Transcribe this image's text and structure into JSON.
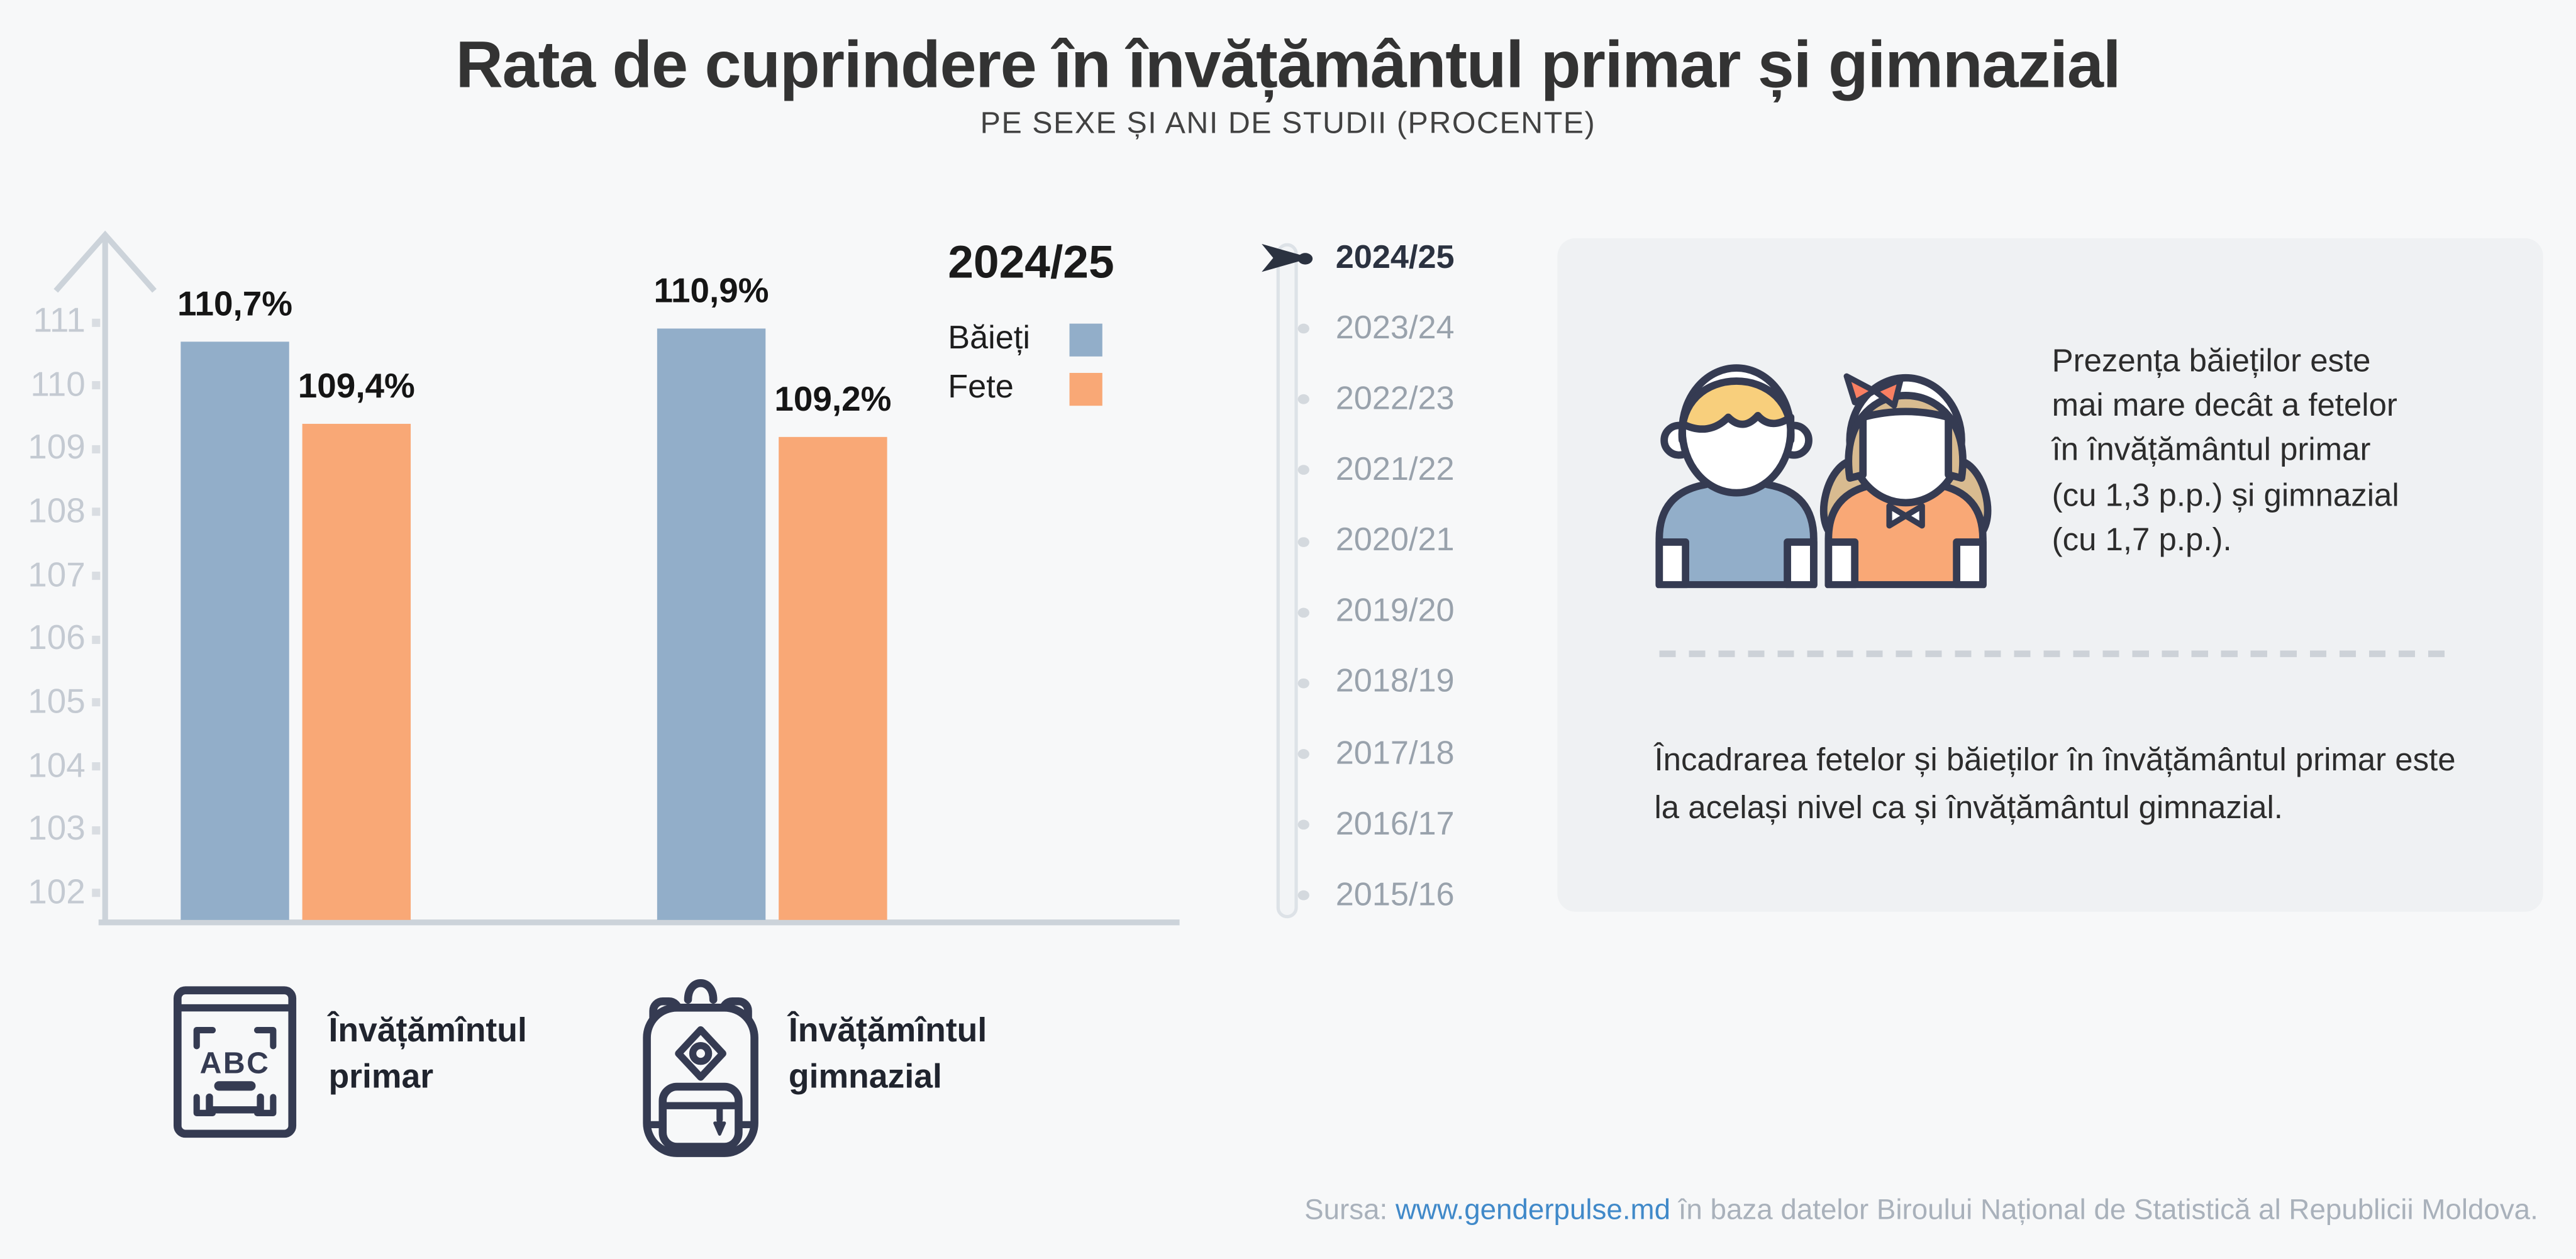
{
  "header": {
    "title": "Rata de cuprindere în învățământul primar și gimnazial",
    "subtitle": "PE SEXE ȘI ANI DE STUDII (PROCENTE)"
  },
  "chart_data": {
    "type": "bar",
    "title": "Rata de cuprindere în învățământul primar și gimnazial",
    "subtitle": "PE SEXE ȘI ANI DE STUDII (PROCENTE)",
    "categories": [
      "Învățămîntul primar",
      "Învățămîntul gimnazial"
    ],
    "series": [
      {
        "name": "Băieți",
        "color": "#92aec9",
        "values": [
          110.7,
          110.9
        ],
        "labels": [
          "110,7%",
          "110,9%"
        ]
      },
      {
        "name": "Fete",
        "color": "#f9a876",
        "values": [
          109.4,
          109.2
        ],
        "labels": [
          "109,4%",
          "109,2%"
        ]
      }
    ],
    "ylim": [
      102,
      111
    ],
    "yticks": [
      111,
      110,
      109,
      108,
      107,
      106,
      105,
      104,
      103,
      102
    ],
    "grid": false,
    "legend_title": "2024/25",
    "legend_position": "top-right",
    "unit": "%"
  },
  "legend": {
    "title": "2024/25",
    "items": [
      {
        "label": "Băieți",
        "color": "#92aec9"
      },
      {
        "label": "Fete",
        "color": "#f9a876"
      }
    ]
  },
  "timeline": {
    "selected": "2024/25",
    "years": [
      "2024/25",
      "2023/24",
      "2022/23",
      "2021/22",
      "2020/21",
      "2019/20",
      "2018/19",
      "2017/18",
      "2016/17",
      "2015/16"
    ]
  },
  "info_panel": {
    "highlight_lines": [
      "Prezența băieților este",
      "mai mare decât a fetelor",
      "în învățământul primar",
      "(cu 1,3 p.p.) și gimnazial",
      "(cu 1,7 p.p.)."
    ],
    "note_lines": [
      "Încadrarea fetelor și băieților în învățământul primar este",
      "la același nivel ca și învățământul gimnazial."
    ]
  },
  "categories_legend": [
    {
      "icon": "abc-book-icon",
      "label": "Învățămîntul primar",
      "lines": [
        "Învățămîntul",
        "primar"
      ],
      "abc_text": "ABC"
    },
    {
      "icon": "backpack-icon",
      "label": "Învățămîntul gimnazial",
      "lines": [
        "Învățămîntul",
        "gimnazial"
      ]
    }
  ],
  "footer": {
    "prefix": "Sursa: ",
    "link": "www.genderpulse.md",
    "suffix": " în baza datelor Biroului Național de Statistică al Republicii Moldova."
  },
  "colors": {
    "background": "#f7f8f9",
    "panel": "#eff1f3",
    "boys": "#92aec9",
    "girls": "#f9a876",
    "axis": "#ccd3da",
    "tick_text": "#c4cad2",
    "accent_dark": "#2b3240",
    "year_muted": "#99a2ac",
    "link": "#4089c9",
    "outline_navy": "#353b52",
    "boy_hair": "#f8cf7c",
    "girl_hair": "#d8bb90",
    "bow": "#f97f62"
  }
}
